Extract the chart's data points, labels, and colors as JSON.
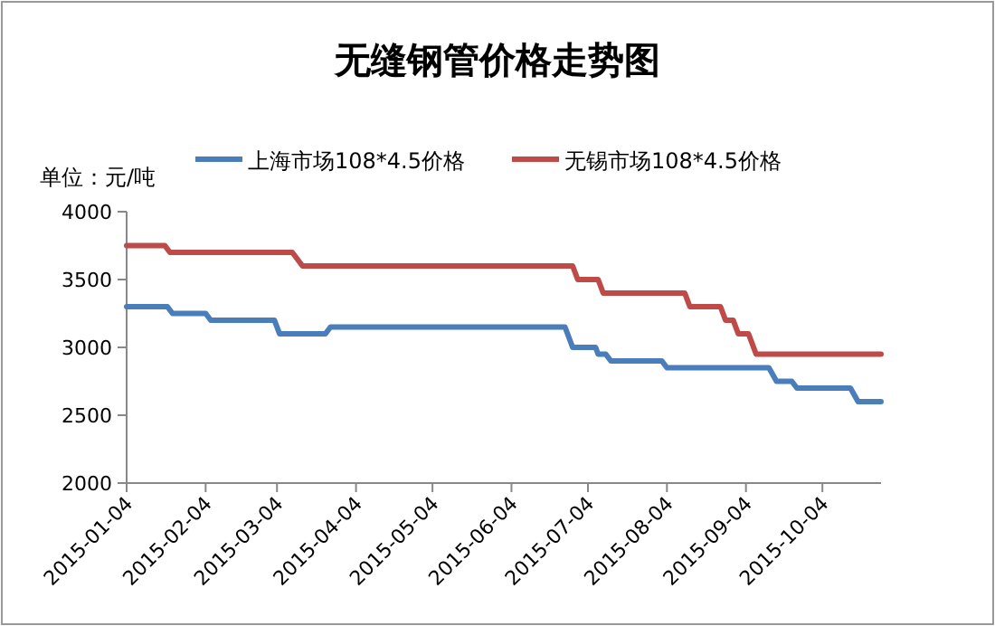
{
  "chart_data": {
    "type": "line",
    "title": "无缝钢管价格走势图",
    "ylabel": "单位：元/吨",
    "legend": "top",
    "xlim": [
      "2015-01-04",
      "2015-10-27"
    ],
    "xticks": [
      "2015-01-04",
      "2015-02-04",
      "2015-03-04",
      "2015-04-04",
      "2015-05-04",
      "2015-06-04",
      "2015-07-04",
      "2015-08-04",
      "2015-09-04",
      "2015-10-04"
    ],
    "ylim": [
      2000,
      4000
    ],
    "yticks": [
      2000,
      2500,
      3000,
      3500,
      4000
    ],
    "series": [
      {
        "name": "上海市场108*4.5价格",
        "color": "#4a7ebb",
        "x": [
          "2015-01-04",
          "2015-01-20",
          "2015-01-22",
          "2015-02-04",
          "2015-02-06",
          "2015-03-03",
          "2015-03-05",
          "2015-03-23",
          "2015-03-25",
          "2015-06-25",
          "2015-06-28",
          "2015-07-07",
          "2015-07-08",
          "2015-07-11",
          "2015-07-13",
          "2015-08-02",
          "2015-08-04",
          "2015-09-13",
          "2015-09-16",
          "2015-09-22",
          "2015-09-24",
          "2015-10-15",
          "2015-10-18",
          "2015-10-27"
        ],
        "values": [
          3300,
          3300,
          3250,
          3250,
          3200,
          3200,
          3100,
          3100,
          3150,
          3150,
          3000,
          3000,
          2950,
          2950,
          2900,
          2900,
          2850,
          2850,
          2750,
          2750,
          2700,
          2700,
          2600,
          2600
        ]
      },
      {
        "name": "无锡市场108*4.5价格",
        "color": "#be4b48",
        "x": [
          "2015-01-04",
          "2015-01-19",
          "2015-01-21",
          "2015-03-10",
          "2015-03-14",
          "2015-06-28",
          "2015-06-30",
          "2015-07-08",
          "2015-07-10",
          "2015-08-11",
          "2015-08-13",
          "2015-08-25",
          "2015-08-27",
          "2015-08-30",
          "2015-09-01",
          "2015-09-05",
          "2015-09-08",
          "2015-10-27"
        ],
        "values": [
          3750,
          3750,
          3700,
          3700,
          3600,
          3600,
          3500,
          3500,
          3400,
          3400,
          3300,
          3300,
          3200,
          3200,
          3100,
          3100,
          2950,
          2950
        ]
      }
    ]
  }
}
